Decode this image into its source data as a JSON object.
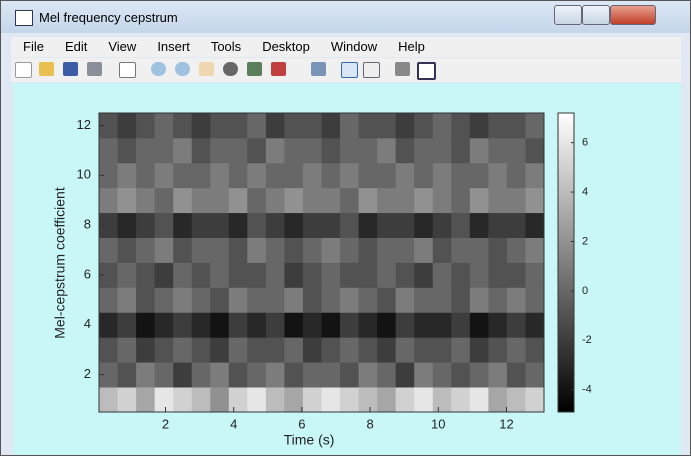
{
  "window": {
    "title": "Mel frequency cepstrum"
  },
  "menu": [
    "File",
    "Edit",
    "View",
    "Insert",
    "Tools",
    "Desktop",
    "Window",
    "Help"
  ],
  "chart_data": {
    "type": "heatmap",
    "xlabel": "Time (s)",
    "ylabel": "Mel-cepstrum coefficient",
    "xlim": [
      0.05,
      13.1
    ],
    "xticks": [
      2,
      4,
      6,
      8,
      10,
      12
    ],
    "ylim": [
      0.5,
      12.5
    ],
    "yticks": [
      2,
      4,
      6,
      8,
      10,
      12
    ],
    "y": [
      1,
      2,
      3,
      4,
      5,
      6,
      7,
      8,
      9,
      10,
      11,
      12
    ],
    "colormap": "gray",
    "clim": [
      -4.9,
      7.2
    ],
    "cticks": [
      -4,
      -2,
      0,
      2,
      4,
      6
    ],
    "z": [
      [
        4,
        5,
        3,
        6,
        5,
        4,
        2,
        5,
        6,
        4,
        3,
        5,
        6,
        5,
        4,
        3,
        5,
        6,
        4,
        5,
        6,
        3,
        4,
        5
      ],
      [
        0,
        -1,
        1,
        0,
        -2,
        0,
        1,
        -1,
        0,
        1,
        -1,
        0,
        0,
        -1,
        1,
        0,
        -2,
        1,
        0,
        -1,
        0,
        1,
        -1,
        0
      ],
      [
        -1,
        0,
        -2,
        -1,
        0,
        -1,
        -2,
        0,
        -1,
        -1,
        0,
        -2,
        -1,
        0,
        -1,
        -2,
        0,
        -1,
        -1,
        0,
        -2,
        -1,
        0,
        -1
      ],
      [
        -3,
        -2,
        -4,
        -3,
        -2,
        -3,
        -4,
        -2,
        -3,
        -2,
        -4,
        -3,
        -4,
        -2,
        -3,
        -4,
        -2,
        -3,
        -3,
        -2,
        -4,
        -3,
        -2,
        -3
      ],
      [
        0,
        1,
        -1,
        0,
        1,
        0,
        -1,
        1,
        0,
        0,
        1,
        -1,
        0,
        1,
        0,
        -1,
        1,
        0,
        0,
        -1,
        1,
        0,
        1,
        0
      ],
      [
        -1,
        0,
        -1,
        -2,
        0,
        -1,
        0,
        -1,
        -1,
        0,
        -2,
        -1,
        0,
        -1,
        -1,
        0,
        -1,
        -2,
        0,
        -1,
        0,
        -1,
        -1,
        0
      ],
      [
        0,
        -1,
        0,
        1,
        -1,
        0,
        0,
        -1,
        1,
        0,
        -1,
        0,
        1,
        0,
        -1,
        0,
        0,
        1,
        -1,
        0,
        0,
        -1,
        0,
        1
      ],
      [
        -2,
        -3,
        -2,
        -1,
        -3,
        -2,
        -2,
        -3,
        -1,
        -2,
        -3,
        -2,
        -2,
        -1,
        -3,
        -2,
        -2,
        -3,
        -2,
        -1,
        -3,
        -2,
        -2,
        -3
      ],
      [
        1,
        2,
        1,
        0,
        2,
        1,
        1,
        2,
        0,
        1,
        2,
        1,
        1,
        0,
        2,
        1,
        1,
        2,
        1,
        0,
        2,
        1,
        1,
        2
      ],
      [
        0,
        1,
        0,
        1,
        0,
        0,
        1,
        0,
        1,
        0,
        0,
        1,
        0,
        1,
        0,
        0,
        1,
        0,
        1,
        0,
        0,
        1,
        0,
        1
      ],
      [
        0,
        -1,
        0,
        0,
        1,
        -1,
        0,
        0,
        -1,
        1,
        0,
        0,
        -1,
        0,
        0,
        1,
        -1,
        0,
        0,
        -1,
        1,
        0,
        0,
        -1
      ],
      [
        -1,
        -2,
        -1,
        0,
        -1,
        -2,
        -1,
        -1,
        0,
        -2,
        -1,
        -1,
        -2,
        0,
        -1,
        -1,
        -2,
        -1,
        0,
        -1,
        -2,
        -1,
        -1,
        0
      ]
    ]
  }
}
